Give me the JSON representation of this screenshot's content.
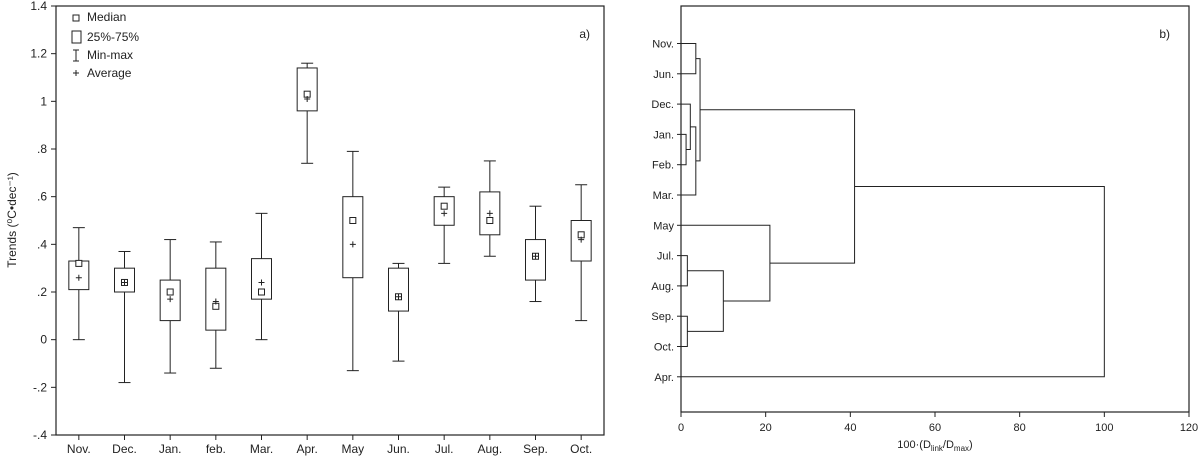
{
  "chart_data": [
    {
      "type": "boxplot",
      "panel_label": "a)",
      "ylabel": "Trends (⁰C•dec⁻¹)",
      "ylim": [
        -0.4,
        1.4
      ],
      "yticks": [
        -0.4,
        -0.2,
        0,
        0.2,
        0.4,
        0.6,
        0.8,
        1,
        1.2,
        1.4
      ],
      "ytick_labels": [
        "-.4",
        "-.2",
        "0",
        ".2",
        ".4",
        ".6",
        ".8",
        "1",
        "1.2",
        "1.4"
      ],
      "legend": {
        "position": "top-left",
        "entries": [
          "Median",
          "25%-75%",
          "Min-max",
          "Average"
        ]
      },
      "categories": [
        "Nov.",
        "Dec.",
        "Jan.",
        "feb.",
        "Mar.",
        "Apr.",
        "May",
        "Jun.",
        "Jul.",
        "Aug.",
        "Sep.",
        "Oct."
      ],
      "series": [
        {
          "category": "Nov.",
          "min": 0.0,
          "q1": 0.21,
          "median": 0.32,
          "q3": 0.33,
          "max": 0.47,
          "average": 0.26
        },
        {
          "category": "Dec.",
          "min": -0.18,
          "q1": 0.2,
          "median": 0.24,
          "q3": 0.3,
          "max": 0.37,
          "average": 0.24
        },
        {
          "category": "Jan.",
          "min": -0.14,
          "q1": 0.08,
          "median": 0.2,
          "q3": 0.25,
          "max": 0.42,
          "average": 0.17
        },
        {
          "category": "feb.",
          "min": -0.12,
          "q1": 0.04,
          "median": 0.14,
          "q3": 0.3,
          "max": 0.41,
          "average": 0.16
        },
        {
          "category": "Mar.",
          "min": 0.0,
          "q1": 0.17,
          "median": 0.2,
          "q3": 0.34,
          "max": 0.53,
          "average": 0.24
        },
        {
          "category": "Apr.",
          "min": 0.74,
          "q1": 0.96,
          "median": 1.03,
          "q3": 1.14,
          "max": 1.16,
          "average": 1.01
        },
        {
          "category": "May",
          "min": -0.13,
          "q1": 0.26,
          "median": 0.5,
          "q3": 0.6,
          "max": 0.79,
          "average": 0.4
        },
        {
          "category": "Jun.",
          "min": -0.09,
          "q1": 0.12,
          "median": 0.18,
          "q3": 0.3,
          "max": 0.32,
          "average": 0.18
        },
        {
          "category": "Jul.",
          "min": 0.32,
          "q1": 0.48,
          "median": 0.56,
          "q3": 0.6,
          "max": 0.64,
          "average": 0.53
        },
        {
          "category": "Aug.",
          "min": 0.35,
          "q1": 0.44,
          "median": 0.5,
          "q3": 0.62,
          "max": 0.75,
          "average": 0.53
        },
        {
          "category": "Sep.",
          "min": 0.16,
          "q1": 0.25,
          "median": 0.35,
          "q3": 0.42,
          "max": 0.56,
          "average": 0.35
        },
        {
          "category": "Oct.",
          "min": 0.08,
          "q1": 0.33,
          "median": 0.44,
          "q3": 0.5,
          "max": 0.65,
          "average": 0.42
        }
      ]
    },
    {
      "type": "dendrogram",
      "panel_label": "b)",
      "xlabel_main": "100·(D",
      "xlabel_sub1": "link",
      "xlabel_mid": "/D",
      "xlabel_sub2": "max",
      "xlabel_end": ")",
      "xlim": [
        0,
        120
      ],
      "xticks": [
        0,
        20,
        40,
        60,
        80,
        100,
        120
      ],
      "leaves": [
        "Nov.",
        "Jun.",
        "Dec.",
        "Jan.",
        "Feb.",
        "Mar.",
        "May",
        "Jul.",
        "Aug.",
        "Sep.",
        "Oct.",
        "Apr."
      ],
      "merges": [
        {
          "id": "c1",
          "children": [
            "Jan.",
            "Feb."
          ],
          "height": 1.2
        },
        {
          "id": "c2",
          "children": [
            "Dec.",
            "c1"
          ],
          "height": 2.2
        },
        {
          "id": "c3",
          "children": [
            "Nov.",
            "Jun."
          ],
          "height": 3.5
        },
        {
          "id": "c4",
          "children": [
            "c2",
            "Mar."
          ],
          "height": 3.5
        },
        {
          "id": "c5",
          "children": [
            "c3",
            "c4"
          ],
          "height": 4.5
        },
        {
          "id": "c6",
          "children": [
            "Sep.",
            "Oct."
          ],
          "height": 1.5
        },
        {
          "id": "c7",
          "children": [
            "Jul.",
            "Aug."
          ],
          "height": 1.5
        },
        {
          "id": "c8",
          "children": [
            "c7",
            "c6"
          ],
          "height": 10
        },
        {
          "id": "c9",
          "children": [
            "May",
            "c8"
          ],
          "height": 21
        },
        {
          "id": "c10",
          "children": [
            "c5",
            "c9"
          ],
          "height": 41
        },
        {
          "id": "c11",
          "children": [
            "c10",
            "Apr."
          ],
          "height": 100
        }
      ]
    }
  ]
}
